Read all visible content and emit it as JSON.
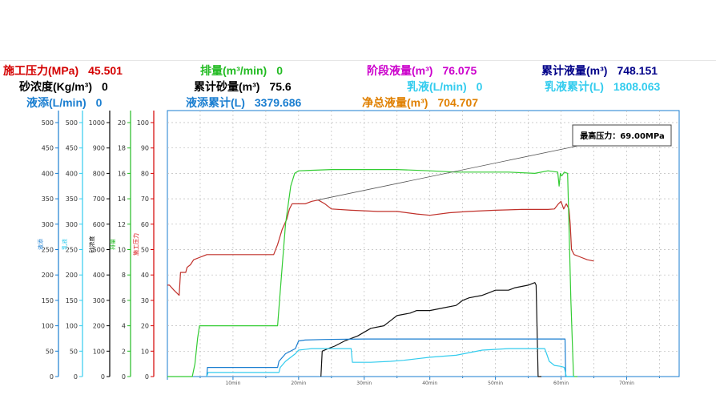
{
  "metrics": [
    {
      "id": "construction-pressure",
      "label": "施工压力(MPa)",
      "value": "45.501",
      "color": "#d40000"
    },
    {
      "id": "displacement",
      "label": "排量(m³/min)",
      "value": "0",
      "color": "#22bb22"
    },
    {
      "id": "stage-fluid",
      "label": "阶段液量(m³)",
      "value": "76.075",
      "color": "#cc00cc"
    },
    {
      "id": "cumulative-fluid",
      "label": "累计液量(m³)",
      "value": "748.151",
      "color": "#000088"
    },
    {
      "id": "sand-concentration",
      "label": "砂浓度(Kg/m³)",
      "value": "0",
      "color": "#000000"
    },
    {
      "id": "cumulative-sand",
      "label": "累计砂量(m³)",
      "value": "75.6",
      "color": "#000000"
    },
    {
      "id": "emulsion",
      "label": "乳液(L/min)",
      "value": "0",
      "color": "#33ccee"
    },
    {
      "id": "emulsion-cumulative",
      "label": "乳液累计(L)",
      "value": "1808.063",
      "color": "#33ccee"
    },
    {
      "id": "additive",
      "label": "液添(L/min)",
      "value": "0",
      "color": "#1a7ed0"
    },
    {
      "id": "additive-cumulative",
      "label": "液添累计(L)",
      "value": "3379.686",
      "color": "#1a7ed0"
    },
    {
      "id": "net-fluid",
      "label": "净总液量(m³)",
      "value": "704.707",
      "color": "#e08000"
    }
  ],
  "chart_data": {
    "type": "line",
    "x_unit": "min",
    "xlim": [
      0,
      78
    ],
    "x_ticks": [
      "10min",
      "20min",
      "30min",
      "40min",
      "50min",
      "60min",
      "70min"
    ],
    "annotation": "最高压力：69.00MPa",
    "axes": [
      {
        "id": "additive-axis",
        "title": "液添",
        "color": "#1a7ed0",
        "ylim": [
          0,
          500
        ],
        "ticks": [
          "500",
          "450",
          "400",
          "350",
          "300",
          "250",
          "200",
          "150",
          "100",
          "50",
          "0"
        ]
      },
      {
        "id": "emulsion-axis",
        "title": "乳液",
        "color": "#33ccee",
        "ylim": [
          0,
          500
        ],
        "ticks": [
          "500",
          "450",
          "400",
          "350",
          "300",
          "250",
          "200",
          "150",
          "100",
          "50",
          "0"
        ]
      },
      {
        "id": "sand-axis",
        "title": "砂浓度",
        "color": "#000000",
        "ylim": [
          0,
          1000
        ],
        "ticks": [
          "1000",
          "900",
          "800",
          "700",
          "600",
          "500",
          "400",
          "300",
          "200",
          "100",
          "0"
        ]
      },
      {
        "id": "rate-axis",
        "title": "排量",
        "color": "#22bb22",
        "ylim": [
          0,
          20
        ],
        "ticks": [
          "20",
          "18",
          "16",
          "14",
          "12",
          "10",
          "8",
          "6",
          "4",
          "2",
          "0"
        ]
      },
      {
        "id": "pressure-axis",
        "title": "施工压力",
        "color": "#d40000",
        "ylim": [
          0,
          100
        ],
        "ticks": [
          "100",
          "90",
          "80",
          "70",
          "60",
          "50",
          "40",
          "30",
          "20",
          "10",
          "0"
        ]
      }
    ],
    "series": [
      {
        "name": "施工压力",
        "color": "#c0302a",
        "axis": 4,
        "points": [
          [
            0,
            36
          ],
          [
            0.3,
            36
          ],
          [
            1,
            34
          ],
          [
            1.8,
            32
          ],
          [
            2,
            41
          ],
          [
            2.8,
            41
          ],
          [
            3,
            43
          ],
          [
            3.5,
            44
          ],
          [
            4,
            46
          ],
          [
            5,
            47
          ],
          [
            6,
            48
          ],
          [
            7,
            48
          ],
          [
            10,
            48
          ],
          [
            14,
            48
          ],
          [
            16.2,
            48
          ],
          [
            16.8,
            52
          ],
          [
            17.5,
            58
          ],
          [
            18.2,
            62
          ],
          [
            18.6,
            66
          ],
          [
            19,
            68
          ],
          [
            20,
            68
          ],
          [
            21,
            68
          ],
          [
            22,
            69
          ],
          [
            23,
            69.5
          ],
          [
            24,
            68
          ],
          [
            25,
            66
          ],
          [
            28,
            65.5
          ],
          [
            32,
            65
          ],
          [
            35,
            65
          ],
          [
            38,
            64
          ],
          [
            40,
            63.5
          ],
          [
            43,
            64.5
          ],
          [
            46,
            65
          ],
          [
            50,
            65.5
          ],
          [
            54,
            65.8
          ],
          [
            58,
            65.8
          ],
          [
            59,
            66
          ],
          [
            59.6,
            68
          ],
          [
            60,
            69
          ],
          [
            60.4,
            66
          ],
          [
            60.8,
            68
          ],
          [
            61.2,
            66
          ],
          [
            61.4,
            60
          ],
          [
            61.6,
            50
          ],
          [
            62,
            48
          ],
          [
            63,
            47
          ],
          [
            64,
            46
          ],
          [
            65,
            45.5
          ]
        ]
      },
      {
        "name": "排量",
        "color": "#33cc33",
        "axis": 3,
        "points": [
          [
            0,
            0
          ],
          [
            3.8,
            0
          ],
          [
            4.2,
            1
          ],
          [
            4.6,
            3
          ],
          [
            4.9,
            4
          ],
          [
            8,
            4
          ],
          [
            12,
            4
          ],
          [
            16.8,
            4
          ],
          [
            17.4,
            8
          ],
          [
            18,
            12
          ],
          [
            18.8,
            15
          ],
          [
            19.4,
            16
          ],
          [
            20,
            16.2
          ],
          [
            25,
            16.3
          ],
          [
            30,
            16.3
          ],
          [
            35,
            16.3
          ],
          [
            40,
            16.2
          ],
          [
            44,
            16.1
          ],
          [
            48,
            16.1
          ],
          [
            52,
            16.1
          ],
          [
            56,
            16.0
          ],
          [
            58,
            16.2
          ],
          [
            59.5,
            16.1
          ],
          [
            59.7,
            15
          ],
          [
            59.9,
            16
          ],
          [
            60.1,
            15.8
          ],
          [
            60.5,
            16.1
          ],
          [
            61,
            16
          ],
          [
            61.2,
            12
          ],
          [
            61.5,
            6
          ],
          [
            61.9,
            0
          ],
          [
            62.5,
            0
          ]
        ]
      },
      {
        "name": "砂浓度",
        "color": "#111111",
        "axis": 2,
        "points": [
          [
            23.4,
            0
          ],
          [
            23.6,
            100
          ],
          [
            24.5,
            110
          ],
          [
            25.5,
            120
          ],
          [
            27,
            140
          ],
          [
            29,
            160
          ],
          [
            31,
            190
          ],
          [
            33,
            200
          ],
          [
            34,
            220
          ],
          [
            35,
            240
          ],
          [
            37,
            250
          ],
          [
            38,
            260
          ],
          [
            40,
            260
          ],
          [
            42,
            270
          ],
          [
            44,
            280
          ],
          [
            45,
            300
          ],
          [
            46,
            310
          ],
          [
            48,
            320
          ],
          [
            49,
            330
          ],
          [
            50,
            340
          ],
          [
            52,
            340
          ],
          [
            53,
            350
          ],
          [
            55,
            360
          ],
          [
            56,
            370
          ],
          [
            56.2,
            360
          ],
          [
            56.5,
            0
          ],
          [
            57,
            0
          ]
        ]
      },
      {
        "name": "液添",
        "color": "#1a7ed0",
        "axis": 0,
        "points": [
          [
            6,
            0
          ],
          [
            6.1,
            18
          ],
          [
            16.8,
            18
          ],
          [
            17,
            30
          ],
          [
            18,
            45
          ],
          [
            19.5,
            55
          ],
          [
            20,
            70
          ],
          [
            21,
            72
          ],
          [
            24,
            73
          ],
          [
            30,
            74
          ],
          [
            40,
            74
          ],
          [
            50,
            74
          ],
          [
            58,
            74
          ],
          [
            60.6,
            74
          ],
          [
            60.7,
            0
          ],
          [
            62,
            0
          ]
        ]
      },
      {
        "name": "乳液",
        "color": "#33ccee",
        "axis": 1,
        "points": [
          [
            6,
            0
          ],
          [
            6.2,
            8
          ],
          [
            17,
            8
          ],
          [
            17.2,
            18
          ],
          [
            18,
            30
          ],
          [
            19.5,
            45
          ],
          [
            20,
            52
          ],
          [
            22,
            55
          ],
          [
            28,
            55
          ],
          [
            28.2,
            28
          ],
          [
            31,
            28
          ],
          [
            34,
            30
          ],
          [
            36,
            32
          ],
          [
            38,
            35
          ],
          [
            40,
            38
          ],
          [
            44,
            42
          ],
          [
            48,
            52
          ],
          [
            52,
            55
          ],
          [
            56,
            55
          ],
          [
            57.5,
            55
          ],
          [
            57.8,
            45
          ],
          [
            58.2,
            30
          ],
          [
            59,
            22
          ],
          [
            60,
            20
          ],
          [
            60.5,
            18
          ],
          [
            60.8,
            0
          ],
          [
            62,
            0
          ]
        ]
      }
    ]
  }
}
